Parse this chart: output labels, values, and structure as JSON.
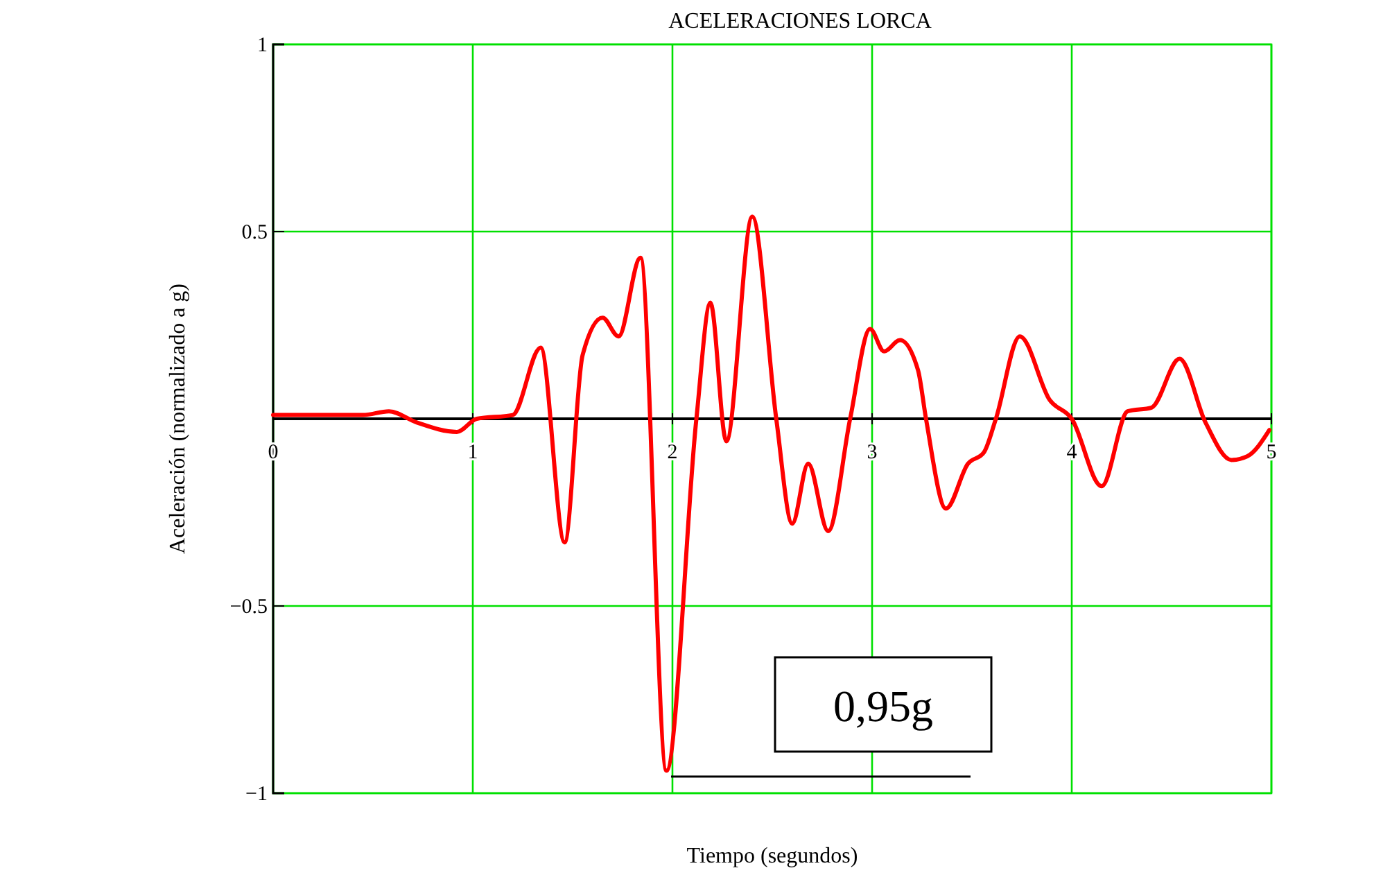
{
  "chart_data": {
    "type": "line",
    "title": "ACELERACIONES LORCA",
    "xlabel": "Tiempo (segundos)",
    "ylabel": "Aceleración (normalizado a g)",
    "x": [
      0,
      0.15,
      0.3,
      0.45,
      0.58,
      0.72,
      0.92,
      1.02,
      1.2,
      1.34,
      1.46,
      1.55,
      1.65,
      1.73,
      1.84,
      1.97,
      2.12,
      2.19,
      2.27,
      2.4,
      2.52,
      2.6,
      2.68,
      2.78,
      2.89,
      2.99,
      3.06,
      3.14,
      3.23,
      3.27,
      3.37,
      3.48,
      3.56,
      3.62,
      3.74,
      3.89,
      4.0,
      4.15,
      4.28,
      4.4,
      4.54,
      4.67,
      4.8,
      4.88,
      4.99
    ],
    "series": [
      {
        "color": "#ff0000",
        "values": [
          0.01,
          0.01,
          0.01,
          0.01,
          0.02,
          -0.01,
          -0.035,
          0,
          0.01,
          0.19,
          -0.33,
          0.17,
          0.27,
          0.22,
          0.43,
          -0.94,
          0,
          0.31,
          -0.06,
          0.54,
          0,
          -0.28,
          -0.12,
          -0.3,
          0,
          0.24,
          0.18,
          0.21,
          0.13,
          0,
          -0.24,
          -0.12,
          -0.09,
          0,
          0.22,
          0.05,
          0,
          -0.18,
          0.02,
          0.03,
          0.16,
          -0.01,
          -0.11,
          -0.1,
          -0.03
        ]
      }
    ],
    "xlim": [
      0,
      5
    ],
    "ylim": [
      -1,
      1
    ],
    "xticks": [
      0,
      1,
      2,
      3,
      4,
      5
    ],
    "yticks": [
      {
        "value": -1,
        "label": "−1"
      },
      {
        "value": -0.5,
        "label": "−0.5"
      },
      0.5,
      1
    ],
    "grid": true,
    "line_style": "solid",
    "marker": "none",
    "annotations": [
      "0,95g"
    ]
  }
}
